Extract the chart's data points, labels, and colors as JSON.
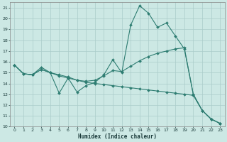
{
  "title": "",
  "xlabel": "Humidex (Indice chaleur)",
  "background_color": "#cce8e4",
  "grid_color": "#aaccca",
  "line_color": "#2e7d72",
  "ylim": [
    10,
    21.5
  ],
  "xlim": [
    -0.5,
    23.5
  ],
  "yticks": [
    10,
    11,
    12,
    13,
    14,
    15,
    16,
    17,
    18,
    19,
    20,
    21
  ],
  "xticks": [
    0,
    1,
    2,
    3,
    4,
    5,
    6,
    7,
    8,
    9,
    10,
    11,
    12,
    13,
    14,
    15,
    16,
    17,
    18,
    19,
    20,
    21,
    22,
    23
  ],
  "series1_x": [
    0,
    1,
    2,
    3,
    4,
    5,
    6,
    7,
    8,
    9,
    10,
    11,
    12,
    13,
    14,
    15,
    16,
    17,
    18,
    19,
    20,
    21,
    22,
    23
  ],
  "series1_y": [
    15.7,
    14.9,
    14.8,
    15.3,
    15.0,
    13.1,
    14.5,
    13.2,
    13.8,
    14.1,
    14.8,
    16.2,
    15.0,
    19.4,
    21.2,
    20.5,
    19.2,
    19.6,
    18.4,
    17.2,
    13.0,
    11.5,
    10.7,
    10.3
  ],
  "series2_x": [
    0,
    1,
    2,
    3,
    4,
    5,
    6,
    7,
    8,
    9,
    10,
    11,
    12,
    13,
    14,
    15,
    16,
    17,
    18,
    19,
    20,
    21,
    22,
    23
  ],
  "series2_y": [
    15.7,
    14.9,
    14.8,
    15.5,
    15.0,
    14.8,
    14.6,
    14.3,
    14.2,
    14.3,
    14.7,
    15.2,
    15.1,
    15.6,
    16.1,
    16.5,
    16.8,
    17.0,
    17.2,
    17.3,
    13.0,
    11.5,
    10.7,
    10.3
  ],
  "series3_x": [
    0,
    1,
    2,
    3,
    4,
    5,
    6,
    7,
    8,
    9,
    10,
    11,
    12,
    13,
    14,
    15,
    16,
    17,
    18,
    19,
    20,
    21,
    22,
    23
  ],
  "series3_y": [
    15.7,
    14.9,
    14.8,
    15.3,
    15.0,
    14.7,
    14.5,
    14.3,
    14.1,
    14.0,
    13.9,
    13.8,
    13.7,
    13.6,
    13.5,
    13.4,
    13.3,
    13.2,
    13.1,
    13.0,
    12.9,
    11.5,
    10.7,
    10.3
  ]
}
